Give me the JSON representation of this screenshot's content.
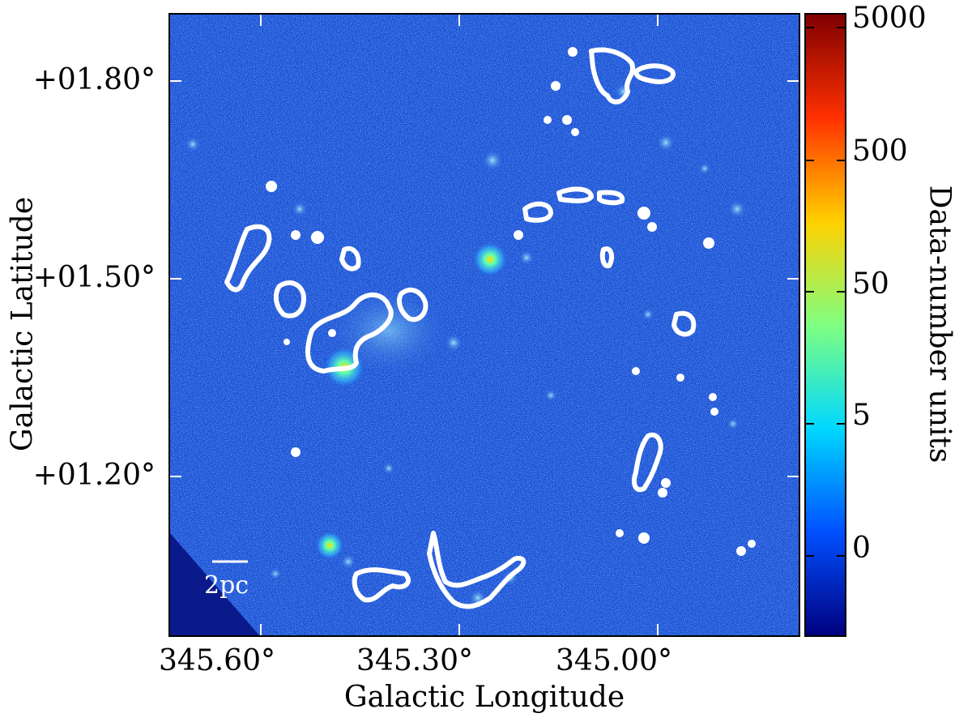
{
  "axes": {
    "xlabel": "Galactic Longitude",
    "ylabel": "Galactic Latitude",
    "xticks": [
      "345.60°",
      "345.30°",
      "345.00°"
    ],
    "yticks": [
      "+01.80°",
      "+01.50°",
      "+01.20°"
    ]
  },
  "colorbar": {
    "title": "Data-number units",
    "ticks": [
      "5000",
      "500",
      "50",
      "5",
      "0"
    ],
    "colors": [
      "#7f0000",
      "#ff3000",
      "#ffd000",
      "#80ff80",
      "#00d8ff",
      "#0050ff",
      "#00007f"
    ]
  },
  "scalebar": {
    "label": "2pc"
  },
  "image": {
    "background_color": "#1b4fd6",
    "contour_color": "#ffffff"
  }
}
